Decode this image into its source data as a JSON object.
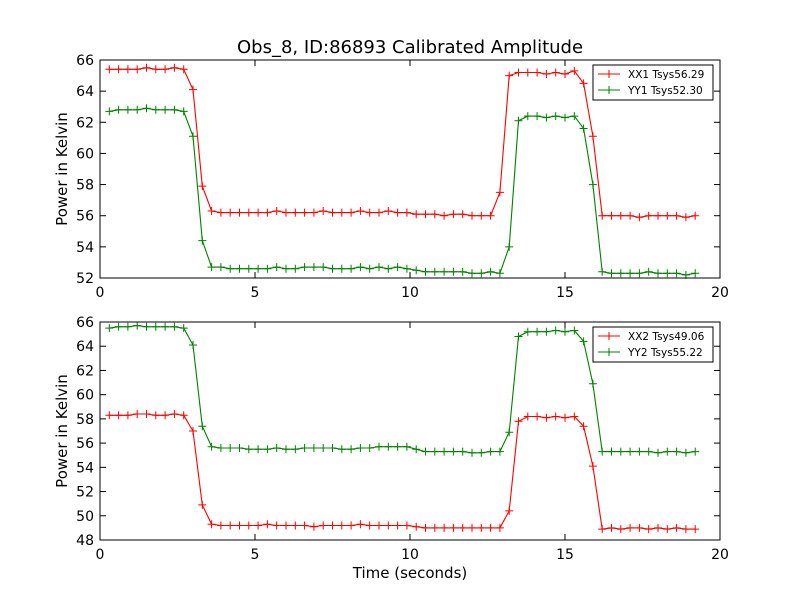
{
  "figure": {
    "title": "Obs_8, ID:86893 Calibrated Amplitude",
    "xlabel": "Time (seconds)"
  },
  "colors": {
    "red": "#ff0000",
    "green": "#008000",
    "axis": "#000000"
  },
  "chart_data": [
    {
      "type": "line",
      "title": "Obs_8, ID:86893 Calibrated Amplitude",
      "xlabel": "",
      "ylabel": "Power in Kelvin",
      "xlim": [
        0,
        20
      ],
      "ylim": [
        52,
        66
      ],
      "xticks": [
        "0",
        "5",
        "10",
        "15",
        "20"
      ],
      "yticks": [
        "52",
        "54",
        "56",
        "58",
        "60",
        "62",
        "64",
        "66"
      ],
      "grid": false,
      "legend_position": "top-right",
      "x": [
        0.3,
        0.6,
        0.9,
        1.2,
        1.5,
        1.8,
        2.1,
        2.4,
        2.7,
        3.0,
        3.3,
        3.6,
        3.9,
        4.2,
        4.5,
        4.8,
        5.1,
        5.4,
        5.7,
        6.0,
        6.3,
        6.6,
        6.9,
        7.2,
        7.5,
        7.8,
        8.1,
        8.4,
        8.7,
        9.0,
        9.3,
        9.6,
        9.9,
        10.2,
        10.5,
        10.8,
        11.1,
        11.4,
        11.7,
        12.0,
        12.3,
        12.6,
        12.9,
        13.2,
        13.5,
        13.8,
        14.1,
        14.4,
        14.7,
        15.0,
        15.3,
        15.6,
        15.9,
        16.2,
        16.5,
        16.8,
        17.1,
        17.4,
        17.7,
        18.0,
        18.3,
        18.6,
        18.9,
        19.2
      ],
      "series": [
        {
          "name": "XX1 Tsys56.29",
          "color": "#ff0000",
          "values": [
            65.4,
            65.4,
            65.4,
            65.4,
            65.5,
            65.4,
            65.4,
            65.5,
            65.4,
            64.1,
            57.9,
            56.3,
            56.2,
            56.2,
            56.2,
            56.2,
            56.2,
            56.2,
            56.3,
            56.2,
            56.2,
            56.2,
            56.2,
            56.3,
            56.2,
            56.2,
            56.2,
            56.3,
            56.2,
            56.2,
            56.3,
            56.2,
            56.2,
            56.1,
            56.1,
            56.1,
            56.0,
            56.1,
            56.1,
            56.0,
            56.0,
            56.0,
            57.5,
            65.0,
            65.2,
            65.2,
            65.2,
            65.1,
            65.2,
            65.1,
            65.3,
            64.5,
            61.1,
            56.0,
            56.0,
            56.0,
            56.0,
            55.9,
            56.0,
            56.0,
            56.0,
            56.0,
            55.9,
            56.0
          ]
        },
        {
          "name": "YY1 Tsys52.30",
          "color": "#008000",
          "values": [
            62.7,
            62.8,
            62.8,
            62.8,
            62.9,
            62.8,
            62.8,
            62.8,
            62.7,
            61.1,
            54.4,
            52.7,
            52.7,
            52.6,
            52.6,
            52.6,
            52.6,
            52.6,
            52.7,
            52.6,
            52.6,
            52.7,
            52.7,
            52.7,
            52.6,
            52.6,
            52.6,
            52.7,
            52.6,
            52.7,
            52.6,
            52.7,
            52.6,
            52.5,
            52.4,
            52.4,
            52.4,
            52.4,
            52.4,
            52.3,
            52.3,
            52.4,
            52.3,
            54.0,
            62.1,
            62.4,
            62.4,
            62.3,
            62.4,
            62.3,
            62.4,
            61.6,
            58.0,
            52.4,
            52.3,
            52.3,
            52.3,
            52.3,
            52.4,
            52.3,
            52.3,
            52.3,
            52.2,
            52.3
          ]
        }
      ]
    },
    {
      "type": "line",
      "title": "",
      "xlabel": "Time (seconds)",
      "ylabel": "Power in Kelvin",
      "xlim": [
        0,
        20
      ],
      "ylim": [
        48,
        66
      ],
      "xticks": [
        "0",
        "5",
        "10",
        "15",
        "20"
      ],
      "yticks": [
        "48",
        "50",
        "52",
        "54",
        "56",
        "58",
        "60",
        "62",
        "64",
        "66"
      ],
      "grid": false,
      "legend_position": "top-right",
      "x": [
        0.3,
        0.6,
        0.9,
        1.2,
        1.5,
        1.8,
        2.1,
        2.4,
        2.7,
        3.0,
        3.3,
        3.6,
        3.9,
        4.2,
        4.5,
        4.8,
        5.1,
        5.4,
        5.7,
        6.0,
        6.3,
        6.6,
        6.9,
        7.2,
        7.5,
        7.8,
        8.1,
        8.4,
        8.7,
        9.0,
        9.3,
        9.6,
        9.9,
        10.2,
        10.5,
        10.8,
        11.1,
        11.4,
        11.7,
        12.0,
        12.3,
        12.6,
        12.9,
        13.2,
        13.5,
        13.8,
        14.1,
        14.4,
        14.7,
        15.0,
        15.3,
        15.6,
        15.9,
        16.2,
        16.5,
        16.8,
        17.1,
        17.4,
        17.7,
        18.0,
        18.3,
        18.6,
        18.9,
        19.2
      ],
      "series": [
        {
          "name": "XX2 Tsys49.06",
          "color": "#ff0000",
          "values": [
            58.3,
            58.3,
            58.3,
            58.4,
            58.4,
            58.3,
            58.3,
            58.4,
            58.3,
            57.0,
            50.9,
            49.3,
            49.2,
            49.2,
            49.2,
            49.2,
            49.2,
            49.3,
            49.2,
            49.2,
            49.2,
            49.2,
            49.1,
            49.2,
            49.2,
            49.2,
            49.2,
            49.3,
            49.2,
            49.2,
            49.2,
            49.2,
            49.2,
            49.1,
            49.0,
            49.0,
            49.0,
            49.0,
            49.0,
            49.0,
            49.0,
            49.0,
            49.0,
            50.4,
            57.8,
            58.2,
            58.2,
            58.1,
            58.2,
            58.1,
            58.2,
            57.4,
            54.1,
            48.9,
            49.0,
            48.9,
            49.0,
            49.0,
            48.9,
            49.0,
            48.9,
            49.0,
            48.9,
            48.9
          ]
        },
        {
          "name": "YY2 Tsys55.22",
          "color": "#008000",
          "values": [
            65.5,
            65.6,
            65.6,
            65.7,
            65.6,
            65.6,
            65.6,
            65.6,
            65.5,
            64.1,
            57.4,
            55.7,
            55.6,
            55.6,
            55.6,
            55.5,
            55.5,
            55.5,
            55.6,
            55.5,
            55.5,
            55.6,
            55.6,
            55.6,
            55.6,
            55.5,
            55.5,
            55.6,
            55.6,
            55.7,
            55.7,
            55.7,
            55.7,
            55.5,
            55.3,
            55.3,
            55.3,
            55.3,
            55.3,
            55.2,
            55.2,
            55.3,
            55.3,
            56.9,
            64.8,
            65.2,
            65.2,
            65.2,
            65.3,
            65.2,
            65.3,
            64.4,
            60.9,
            55.3,
            55.3,
            55.3,
            55.3,
            55.3,
            55.3,
            55.2,
            55.3,
            55.3,
            55.2,
            55.3
          ]
        }
      ]
    }
  ]
}
